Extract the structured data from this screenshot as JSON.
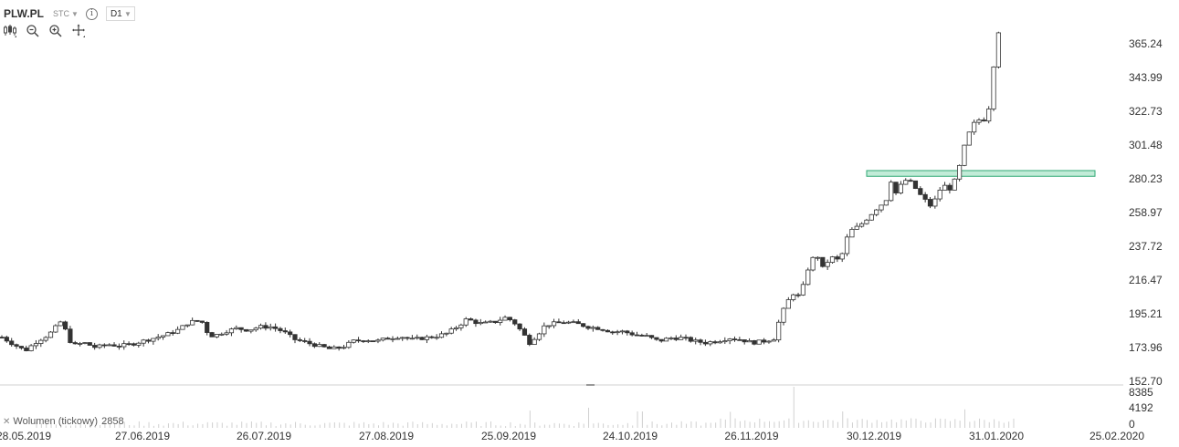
{
  "header": {
    "symbol": "PLW.PL",
    "type_label": "STC",
    "info_icon": "info-icon",
    "interval": "D1"
  },
  "tools": [
    "candlestick-type-icon",
    "zoom-out-icon",
    "zoom-in-icon",
    "crosshair-move-icon"
  ],
  "volume_panel": {
    "label": "Wolumen (tickowy)",
    "value": "2858",
    "ticks": [
      "8385",
      "4192",
      "0"
    ]
  },
  "colors": {
    "candle_up": "#ffffff",
    "candle_down": "#333333",
    "zone_fill": "#9fe0c2",
    "zone_stroke": "#2fa874",
    "volume": "#d0d0d0"
  },
  "chart_data": {
    "type": "candlestick",
    "title": "",
    "xlabel": "",
    "ylabel": "",
    "y_ticks": [
      365.24,
      343.99,
      322.73,
      301.48,
      280.23,
      258.97,
      237.72,
      216.47,
      195.21,
      173.96,
      152.7
    ],
    "y_tick_labels": [
      "365.24",
      "343.99",
      "322.73",
      "301.48",
      "280.23",
      "258.97",
      "237.72",
      "216.47",
      "195.21",
      "173.96",
      "152.70"
    ],
    "ylim": [
      152.7,
      380.0
    ],
    "x_tick_labels": [
      "28.05.2019",
      "27.06.2019",
      "26.07.2019",
      "27.08.2019",
      "25.09.2019",
      "24.10.2019",
      "26.11.2019",
      "30.12.2019",
      "31.01.2020",
      "25.02.2020"
    ],
    "resistance_zone": [
      281.8,
      285.4
    ],
    "close_path": [
      [
        0,
        180.5
      ],
      [
        6,
        176
      ],
      [
        12,
        172
      ],
      [
        18,
        178
      ],
      [
        24,
        182
      ],
      [
        30,
        190
      ],
      [
        33,
        184
      ],
      [
        36,
        175
      ],
      [
        42,
        177
      ],
      [
        48,
        174
      ],
      [
        54,
        176
      ],
      [
        60,
        175
      ],
      [
        66,
        176
      ],
      [
        72,
        178
      ],
      [
        78,
        180
      ],
      [
        84,
        182
      ],
      [
        90,
        185
      ],
      [
        96,
        190
      ],
      [
        102,
        191
      ],
      [
        105,
        184
      ],
      [
        108,
        181
      ],
      [
        114,
        184
      ],
      [
        120,
        186
      ],
      [
        126,
        185
      ],
      [
        132,
        187
      ],
      [
        138,
        187
      ],
      [
        144,
        184
      ],
      [
        150,
        179
      ],
      [
        156,
        177
      ],
      [
        162,
        175
      ],
      [
        168,
        173
      ],
      [
        174,
        174
      ],
      [
        180,
        178
      ],
      [
        186,
        179
      ],
      [
        192,
        178
      ],
      [
        198,
        180
      ],
      [
        204,
        181
      ],
      [
        210,
        179
      ],
      [
        216,
        180
      ],
      [
        222,
        181
      ],
      [
        228,
        183
      ],
      [
        234,
        188
      ],
      [
        238,
        192
      ],
      [
        242,
        190
      ],
      [
        246,
        189
      ],
      [
        252,
        190
      ],
      [
        258,
        193
      ],
      [
        262,
        190
      ],
      [
        266,
        184
      ],
      [
        270,
        177
      ],
      [
        274,
        182
      ],
      [
        278,
        188
      ],
      [
        282,
        189
      ],
      [
        288,
        190
      ],
      [
        294,
        189
      ],
      [
        300,
        187
      ],
      [
        306,
        186
      ],
      [
        312,
        184
      ],
      [
        318,
        184
      ],
      [
        324,
        182
      ],
      [
        330,
        181
      ],
      [
        336,
        178
      ],
      [
        342,
        180
      ],
      [
        348,
        180
      ],
      [
        354,
        178
      ],
      [
        360,
        177
      ],
      [
        366,
        178
      ],
      [
        372,
        180
      ],
      [
        378,
        179
      ],
      [
        384,
        177
      ],
      [
        390,
        178
      ],
      [
        396,
        180
      ],
      [
        398,
        193
      ],
      [
        401,
        200
      ],
      [
        403,
        205
      ],
      [
        405,
        208
      ],
      [
        407,
        206
      ],
      [
        409,
        208
      ],
      [
        412,
        222
      ],
      [
        414,
        228
      ],
      [
        416,
        232
      ],
      [
        418,
        231
      ],
      [
        420,
        224
      ],
      [
        422,
        227
      ],
      [
        424,
        231
      ],
      [
        426,
        230
      ],
      [
        428,
        229
      ],
      [
        430,
        233
      ],
      [
        432,
        242
      ],
      [
        435,
        248
      ],
      [
        438,
        250
      ],
      [
        441,
        253
      ],
      [
        444,
        257
      ],
      [
        448,
        262
      ],
      [
        451,
        265
      ],
      [
        453,
        268
      ],
      [
        455,
        279
      ],
      [
        457,
        270
      ],
      [
        459,
        275
      ],
      [
        461,
        277
      ],
      [
        463,
        280
      ],
      [
        465,
        278
      ],
      [
        467,
        275
      ],
      [
        470,
        270
      ],
      [
        473,
        266
      ],
      [
        476,
        262
      ],
      [
        479,
        272
      ],
      [
        482,
        276
      ],
      [
        485,
        274
      ],
      [
        488,
        280
      ],
      [
        490,
        288
      ],
      [
        493,
        303
      ],
      [
        496,
        312
      ],
      [
        499,
        318
      ],
      [
        502,
        316
      ],
      [
        505,
        325
      ],
      [
        507,
        345
      ],
      [
        509,
        372
      ],
      [
        510,
        373
      ]
    ],
    "volume_spikes": [
      [
        0.52,
        0.42
      ],
      [
        0.58,
        0.49
      ],
      [
        0.63,
        0.4
      ],
      [
        0.72,
        0.39
      ],
      [
        0.78,
        1.0
      ],
      [
        0.83,
        0.4
      ],
      [
        0.95,
        0.45
      ]
    ]
  }
}
